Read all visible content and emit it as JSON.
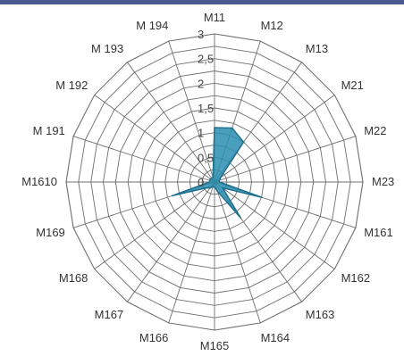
{
  "colors": {
    "grid": "#6f6f6f",
    "series_fill": "#2a8fb0",
    "series_stroke": "#1f6f8e",
    "top_bar": "#4a5a8e"
  },
  "chart_data": {
    "type": "radar",
    "categories": [
      "M11",
      "M12",
      "M13",
      "M21",
      "M22",
      "M23",
      "M161",
      "M162",
      "M163",
      "M164",
      "M165",
      "M166",
      "M167",
      "M168",
      "M169",
      "M1610",
      "M 191",
      "M 192",
      "M 193",
      "M 194"
    ],
    "tick_labels": [
      "0",
      "0,5",
      "1",
      "1,5",
      "2",
      "2,5",
      "3"
    ],
    "rlim": [
      0,
      3
    ],
    "series": [
      {
        "values": [
          1.1,
          1.15,
          1.0,
          0.15,
          0.1,
          0.1,
          1.0,
          0.2,
          0.9,
          0.2,
          0.1,
          0.1,
          0.15,
          0.2,
          0.9,
          0.1,
          0.1,
          0.1,
          0.1,
          0.1
        ]
      }
    ],
    "grid": true,
    "legend": "none"
  }
}
